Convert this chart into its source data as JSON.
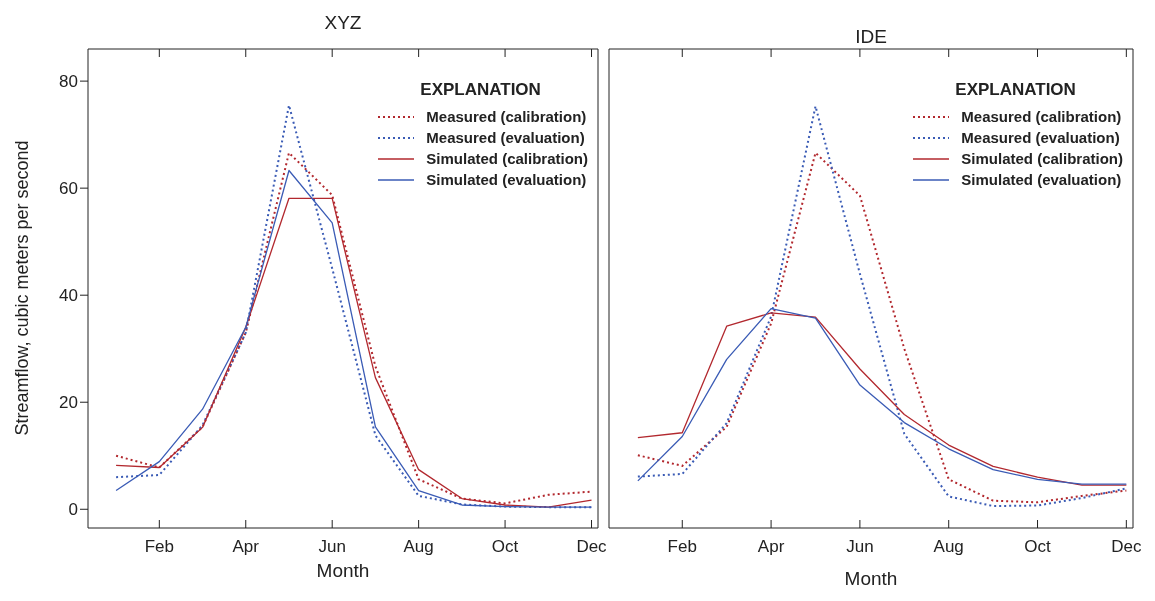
{
  "chart_data": [
    {
      "type": "line",
      "title": "XYZ",
      "xlabel": "Month",
      "ylabel": "Streamflow, cubic meters per second",
      "legend_title": "EXPLANATION",
      "legend": "top right",
      "grid": false,
      "marker": "none",
      "categories": [
        null,
        "Feb",
        null,
        "Apr",
        null,
        "Jun",
        null,
        "Aug",
        null,
        "Oct",
        null,
        "Dec"
      ],
      "ylim": [
        -3.5,
        86
      ],
      "yticks": [
        0,
        20,
        40,
        60,
        80
      ],
      "series": [
        {
          "name": "Measured (calibration)",
          "color": "#b2282e",
          "line_style": "dotted",
          "values": [
            10.0,
            7.8,
            15.4,
            33,
            66.6,
            58.7,
            26.7,
            5.6,
            2.0,
            1.1,
            2.7,
            3.3
          ]
        },
        {
          "name": "Measured (evaluation)",
          "color": "#3a5bb5",
          "line_style": "dotted",
          "values": [
            6.0,
            6.4,
            15.7,
            33,
            75.5,
            45,
            13.8,
            2.5,
            0.9,
            0.5,
            0.4,
            0.4
          ]
        },
        {
          "name": "Simulated (calibration)",
          "color": "#b2282e",
          "line_style": "solid",
          "values": [
            8.2,
            7.8,
            15.3,
            34,
            58.1,
            58.1,
            24.6,
            7.4,
            2.0,
            0.8,
            0.4,
            1.7
          ]
        },
        {
          "name": "Simulated (evaluation)",
          "color": "#3a5bb5",
          "line_style": "solid",
          "values": [
            3.5,
            8.9,
            18.7,
            34,
            63.3,
            53.5,
            15.4,
            3.5,
            0.8,
            0.5,
            0.4,
            0.4
          ]
        }
      ]
    },
    {
      "type": "line",
      "title": "IDE",
      "xlabel": "Month",
      "legend_title": "EXPLANATION",
      "legend": "top right",
      "grid": false,
      "marker": "none",
      "tick_labels": "x",
      "categories": [
        null,
        "Feb",
        null,
        "Apr",
        null,
        "Jun",
        null,
        "Aug",
        null,
        "Oct",
        null,
        "Dec"
      ],
      "ylim": [
        -3.5,
        86
      ],
      "yticks": [
        0,
        20,
        40,
        60,
        80
      ],
      "series": [
        {
          "name": "Measured (calibration)",
          "color": "#b2282e",
          "line_style": "dotted",
          "values": [
            10.1,
            8.1,
            15.4,
            34.7,
            66.6,
            58.6,
            30,
            5.6,
            1.6,
            1.3,
            2.5,
            3.5
          ]
        },
        {
          "name": "Measured (evaluation)",
          "color": "#3a5bb5",
          "line_style": "dotted",
          "values": [
            6.1,
            6.6,
            16.1,
            36,
            75.3,
            44,
            14.1,
            2.4,
            0.6,
            0.7,
            2.1,
            3.9
          ]
        },
        {
          "name": "Simulated (calibration)",
          "color": "#b2282e",
          "line_style": "solid",
          "values": [
            13.4,
            14.3,
            34.2,
            36.7,
            35.9,
            26.2,
            17.7,
            12.0,
            8.0,
            6.0,
            4.5,
            4.5
          ]
        },
        {
          "name": "Simulated (evaluation)",
          "color": "#3a5bb5",
          "line_style": "solid",
          "values": [
            5.3,
            13.6,
            28.0,
            37.5,
            35.7,
            23.2,
            16.2,
            11.3,
            7.4,
            5.6,
            4.7,
            4.7
          ]
        }
      ]
    }
  ]
}
